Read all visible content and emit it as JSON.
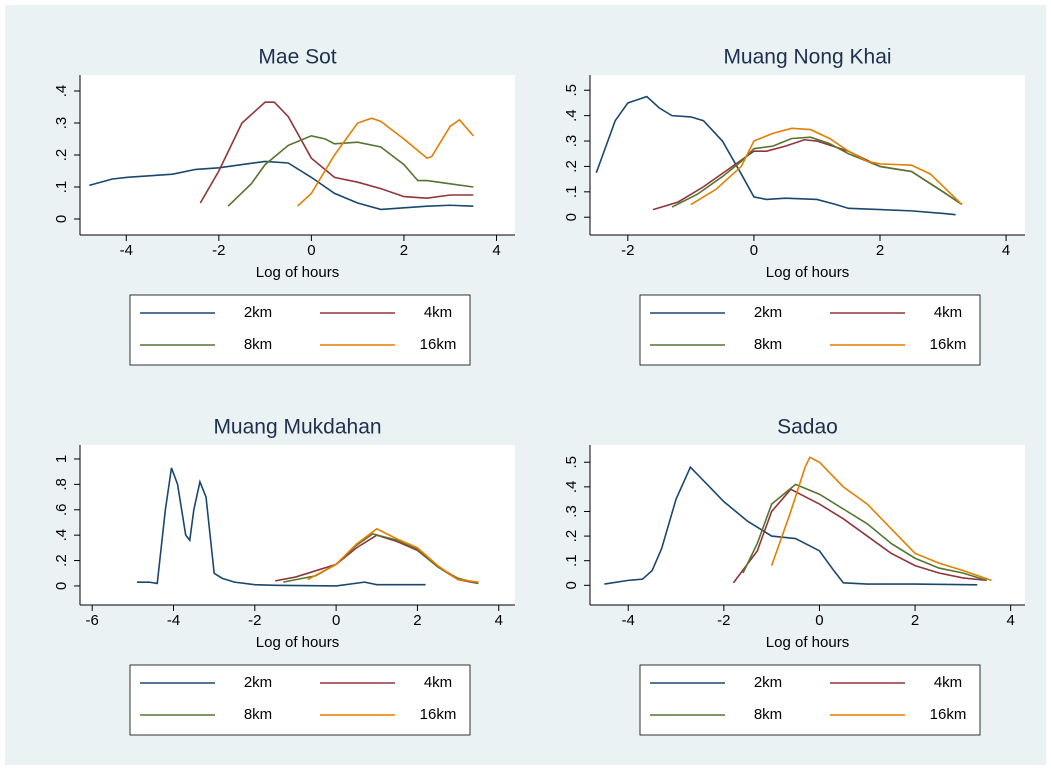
{
  "chart_data": [
    {
      "type": "line",
      "title": "Mae Sot",
      "xlabel": "Log of hours",
      "xlim": [
        -5,
        4.4
      ],
      "ylim": [
        -0.05,
        0.45
      ],
      "xticks": [
        -4,
        -2,
        0,
        2,
        4
      ],
      "yticks": [
        0,
        {
          "value": 0.1,
          "label": ".1"
        },
        {
          "value": 0.2,
          "label": ".2"
        },
        {
          "value": 0.3,
          "label": ".3"
        },
        {
          "value": 0.4,
          "label": ".4"
        }
      ],
      "series": [
        {
          "name": "2km",
          "color": "#1a476f",
          "x": [
            -4.8,
            -4.3,
            -4,
            -3.5,
            -3,
            -2.5,
            -2,
            -1.5,
            -1,
            -0.5,
            0,
            0.5,
            1,
            1.5,
            2,
            2.5,
            3,
            3.5
          ],
          "values": [
            0.105,
            0.125,
            0.13,
            0.135,
            0.14,
            0.155,
            0.16,
            0.17,
            0.18,
            0.175,
            0.13,
            0.08,
            0.05,
            0.03,
            0.035,
            0.04,
            0.043,
            0.04
          ]
        },
        {
          "name": "4km",
          "color": "#90353b",
          "x": [
            -2.4,
            -2,
            -1.5,
            -1,
            -0.8,
            -0.5,
            0,
            0.5,
            1,
            1.5,
            2,
            2.5,
            3,
            3.5
          ],
          "values": [
            0.05,
            0.15,
            0.3,
            0.365,
            0.365,
            0.32,
            0.19,
            0.13,
            0.115,
            0.095,
            0.07,
            0.065,
            0.075,
            0.075
          ]
        },
        {
          "name": "8km",
          "color": "#55752f",
          "x": [
            -1.8,
            -1.3,
            -1,
            -0.5,
            0,
            0.3,
            0.5,
            1,
            1.5,
            2,
            2.3,
            2.5,
            3,
            3.5
          ],
          "values": [
            0.04,
            0.11,
            0.17,
            0.23,
            0.26,
            0.25,
            0.235,
            0.24,
            0.225,
            0.17,
            0.12,
            0.12,
            0.11,
            0.1
          ]
        },
        {
          "name": "16km",
          "color": "#e37e00",
          "x": [
            -0.3,
            0,
            0.5,
            1,
            1.3,
            1.5,
            2,
            2.5,
            2.6,
            3,
            3.2,
            3.5
          ],
          "values": [
            0.04,
            0.08,
            0.2,
            0.3,
            0.315,
            0.305,
            0.25,
            0.19,
            0.195,
            0.29,
            0.31,
            0.26
          ]
        }
      ]
    },
    {
      "type": "line",
      "title": "Muang Nong Khai",
      "xlabel": "Log of hours",
      "xlim": [
        -2.6,
        4.3
      ],
      "ylim": [
        -0.07,
        0.56
      ],
      "xticks": [
        -2,
        0,
        2,
        4
      ],
      "yticks": [
        0,
        {
          "value": 0.1,
          "label": ".1"
        },
        {
          "value": 0.2,
          "label": ".2"
        },
        {
          "value": 0.3,
          "label": ".3"
        },
        {
          "value": 0.4,
          "label": ".4"
        },
        {
          "value": 0.5,
          "label": ".5"
        }
      ],
      "series": [
        {
          "name": "2km",
          "color": "#1a476f",
          "x": [
            -2.5,
            -2.2,
            -2,
            -1.7,
            -1.5,
            -1.3,
            -1,
            -0.8,
            -0.5,
            -0.2,
            0,
            0.2,
            0.5,
            1,
            1.3,
            1.5,
            2,
            2.5,
            3,
            3.2
          ],
          "values": [
            0.175,
            0.38,
            0.45,
            0.475,
            0.43,
            0.4,
            0.395,
            0.38,
            0.3,
            0.17,
            0.08,
            0.07,
            0.075,
            0.07,
            0.05,
            0.035,
            0.03,
            0.025,
            0.015,
            0.01
          ]
        },
        {
          "name": "4km",
          "color": "#90353b",
          "x": [
            -1.6,
            -1.2,
            -0.8,
            -0.4,
            0,
            0.2,
            0.5,
            0.8,
            1,
            1.5,
            2,
            2.5,
            3,
            3.3
          ],
          "values": [
            0.03,
            0.06,
            0.12,
            0.19,
            0.26,
            0.26,
            0.28,
            0.305,
            0.3,
            0.26,
            0.2,
            0.18,
            0.1,
            0.05
          ]
        },
        {
          "name": "8km",
          "color": "#55752f",
          "x": [
            -1.3,
            -0.9,
            -0.5,
            -0.2,
            0,
            0.3,
            0.6,
            0.9,
            1.2,
            1.5,
            2,
            2.5,
            3,
            3.3
          ],
          "values": [
            0.04,
            0.09,
            0.16,
            0.22,
            0.27,
            0.28,
            0.31,
            0.315,
            0.29,
            0.25,
            0.2,
            0.18,
            0.1,
            0.05
          ]
        },
        {
          "name": "16km",
          "color": "#e37e00",
          "x": [
            -1,
            -0.6,
            -0.2,
            0,
            0.3,
            0.6,
            0.9,
            1.2,
            1.5,
            1.8,
            2,
            2.5,
            2.8,
            3.3
          ],
          "values": [
            0.05,
            0.11,
            0.2,
            0.3,
            0.33,
            0.35,
            0.345,
            0.31,
            0.26,
            0.22,
            0.21,
            0.205,
            0.17,
            0.05
          ]
        }
      ]
    },
    {
      "type": "line",
      "title": "Muang Mukdahan",
      "xlabel": "Log of hours",
      "xlim": [
        -6.3,
        4.4
      ],
      "ylim": [
        -0.15,
        1.11
      ],
      "xticks": [
        -6,
        -4,
        -2,
        0,
        2,
        4
      ],
      "yticks": [
        0,
        {
          "value": 0.2,
          "label": ".2"
        },
        {
          "value": 0.4,
          "label": ".4"
        },
        {
          "value": 0.6,
          "label": ".6"
        },
        {
          "value": 0.8,
          "label": ".8"
        },
        1
      ],
      "series": [
        {
          "name": "2km",
          "color": "#1a476f",
          "x": [
            -4.9,
            -4.6,
            -4.4,
            -4.2,
            -4.05,
            -3.9,
            -3.7,
            -3.6,
            -3.5,
            -3.35,
            -3.2,
            -3,
            -2.8,
            -2.5,
            -2,
            -1.5,
            0,
            0.7,
            1,
            2.2
          ],
          "values": [
            0.03,
            0.03,
            0.02,
            0.6,
            0.93,
            0.8,
            0.4,
            0.36,
            0.6,
            0.82,
            0.7,
            0.1,
            0.06,
            0.03,
            0.01,
            0.005,
            0,
            0.03,
            0.01,
            0.01
          ]
        },
        {
          "name": "4km",
          "color": "#90353b",
          "x": [
            -1.5,
            -1,
            0,
            0.5,
            1,
            1.5,
            2,
            2.5,
            3,
            3.5
          ],
          "values": [
            0.04,
            0.07,
            0.17,
            0.3,
            0.4,
            0.35,
            0.28,
            0.15,
            0.05,
            0.02
          ]
        },
        {
          "name": "8km",
          "color": "#55752f",
          "x": [
            -1.3,
            -0.5,
            0,
            0.5,
            0.9,
            1.5,
            2,
            2.5,
            3,
            3.5
          ],
          "values": [
            0.03,
            0.08,
            0.17,
            0.32,
            0.41,
            0.36,
            0.29,
            0.15,
            0.06,
            0.02
          ]
        },
        {
          "name": "16km",
          "color": "#e37e00",
          "x": [
            -0.7,
            0,
            0.5,
            1,
            1.5,
            2,
            2.5,
            3,
            3.5
          ],
          "values": [
            0.05,
            0.17,
            0.33,
            0.45,
            0.37,
            0.3,
            0.16,
            0.05,
            0.03
          ]
        }
      ]
    },
    {
      "type": "line",
      "title": "Sadao",
      "xlabel": "Log of hours",
      "xlim": [
        -4.8,
        4.3
      ],
      "ylim": [
        -0.08,
        0.57
      ],
      "xticks": [
        -4,
        -2,
        0,
        2,
        4
      ],
      "yticks": [
        0,
        {
          "value": 0.1,
          "label": ".1"
        },
        {
          "value": 0.2,
          "label": ".2"
        },
        {
          "value": 0.3,
          "label": ".3"
        },
        {
          "value": 0.4,
          "label": ".4"
        },
        {
          "value": 0.5,
          "label": ".5"
        }
      ],
      "series": [
        {
          "name": "2km",
          "color": "#1a476f",
          "x": [
            -4.5,
            -4,
            -3.7,
            -3.5,
            -3.3,
            -3,
            -2.7,
            -2.5,
            -2.3,
            -2,
            -1.5,
            -1,
            -0.5,
            0,
            0.3,
            0.5,
            1,
            2,
            3.3
          ],
          "values": [
            0.005,
            0.02,
            0.025,
            0.06,
            0.15,
            0.35,
            0.48,
            0.44,
            0.4,
            0.34,
            0.26,
            0.2,
            0.19,
            0.14,
            0.06,
            0.01,
            0.005,
            0.005,
            0.002
          ]
        },
        {
          "name": "4km",
          "color": "#90353b",
          "x": [
            -1.8,
            -1.3,
            -1,
            -0.6,
            -0.3,
            0,
            0.5,
            1,
            1.5,
            2,
            2.5,
            3,
            3.5
          ],
          "values": [
            0.01,
            0.14,
            0.3,
            0.39,
            0.36,
            0.33,
            0.27,
            0.2,
            0.13,
            0.08,
            0.05,
            0.03,
            0.02
          ]
        },
        {
          "name": "8km",
          "color": "#55752f",
          "x": [
            -1.6,
            -1.3,
            -1,
            -0.5,
            0,
            0.5,
            1,
            1.5,
            2,
            2.5,
            3,
            3.5
          ],
          "values": [
            0.05,
            0.17,
            0.33,
            0.41,
            0.37,
            0.31,
            0.25,
            0.17,
            0.11,
            0.07,
            0.05,
            0.02
          ]
        },
        {
          "name": "16km",
          "color": "#e37e00",
          "x": [
            -1,
            -0.6,
            -0.3,
            -0.2,
            0,
            0.5,
            1,
            1.5,
            2,
            2.5,
            3,
            3.6
          ],
          "values": [
            0.08,
            0.3,
            0.48,
            0.52,
            0.5,
            0.4,
            0.33,
            0.23,
            0.13,
            0.09,
            0.06,
            0.02
          ]
        }
      ]
    }
  ]
}
